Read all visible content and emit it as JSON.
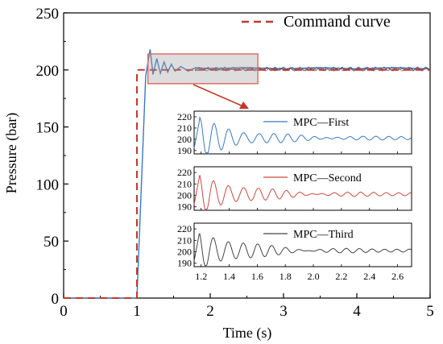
{
  "chart_data": [
    {
      "type": "line",
      "title": "",
      "xlabel": "Time (s)",
      "ylabel": "Pressure (bar)",
      "xlim": [
        0,
        5
      ],
      "ylim": [
        0,
        250
      ],
      "xticks": [
        "0",
        "1",
        "2",
        "3",
        "4",
        "5"
      ],
      "yticks": [
        "0",
        "50",
        "100",
        "150",
        "200",
        "250"
      ],
      "legend_position": "top-right",
      "grid": false,
      "series": [
        {
          "name": "Command curve",
          "style": "dashed",
          "color": "#c0392b",
          "x": [
            0,
            1.0,
            1.0,
            5.0
          ],
          "y": [
            0,
            0,
            200,
            200
          ]
        },
        {
          "name": "",
          "style": "solid",
          "color": "#3b78c2",
          "x": [
            0,
            1.0,
            1.12,
            1.18,
            1.22,
            1.27,
            1.32,
            1.37,
            1.42,
            1.47,
            1.52,
            1.6,
            1.7,
            1.8,
            2.0,
            2.5,
            3.0,
            3.5,
            4.0,
            4.5,
            5.0
          ],
          "y": [
            0,
            0,
            195,
            218,
            196,
            210,
            197,
            207,
            198,
            205,
            199,
            203,
            199,
            202,
            201,
            202,
            201,
            202,
            201,
            202,
            201
          ]
        }
      ],
      "zoom_box": {
        "x_range": [
          1.15,
          2.65
        ],
        "y_range": [
          188,
          214
        ]
      }
    },
    {
      "type": "line",
      "xlim": [
        1.15,
        2.7
      ],
      "ylim": [
        187,
        225
      ],
      "xticks": [
        "1.2",
        "1.4",
        "1.6",
        "1.8",
        "2.0",
        "2.2",
        "2.4",
        "2.6"
      ],
      "yticks": [
        "190",
        "200",
        "210",
        "220"
      ],
      "series": [
        {
          "name": "MPC—First",
          "color": "#3b78c2",
          "first_peak": 218,
          "settle": 201
        }
      ]
    },
    {
      "type": "line",
      "xlim": [
        1.15,
        2.7
      ],
      "ylim": [
        187,
        225
      ],
      "yticks": [
        "190",
        "200",
        "210",
        "220"
      ],
      "series": [
        {
          "name": "MPC—Second",
          "color": "#c84b3e",
          "first_peak": 218,
          "settle": 201
        }
      ]
    },
    {
      "type": "line",
      "xlim": [
        1.15,
        2.7
      ],
      "ylim": [
        187,
        225
      ],
      "yticks": [
        "190",
        "200",
        "210",
        "220"
      ],
      "series": [
        {
          "name": "MPC—Third",
          "color": "#444444",
          "first_peak": 218,
          "settle": 201
        }
      ]
    }
  ]
}
